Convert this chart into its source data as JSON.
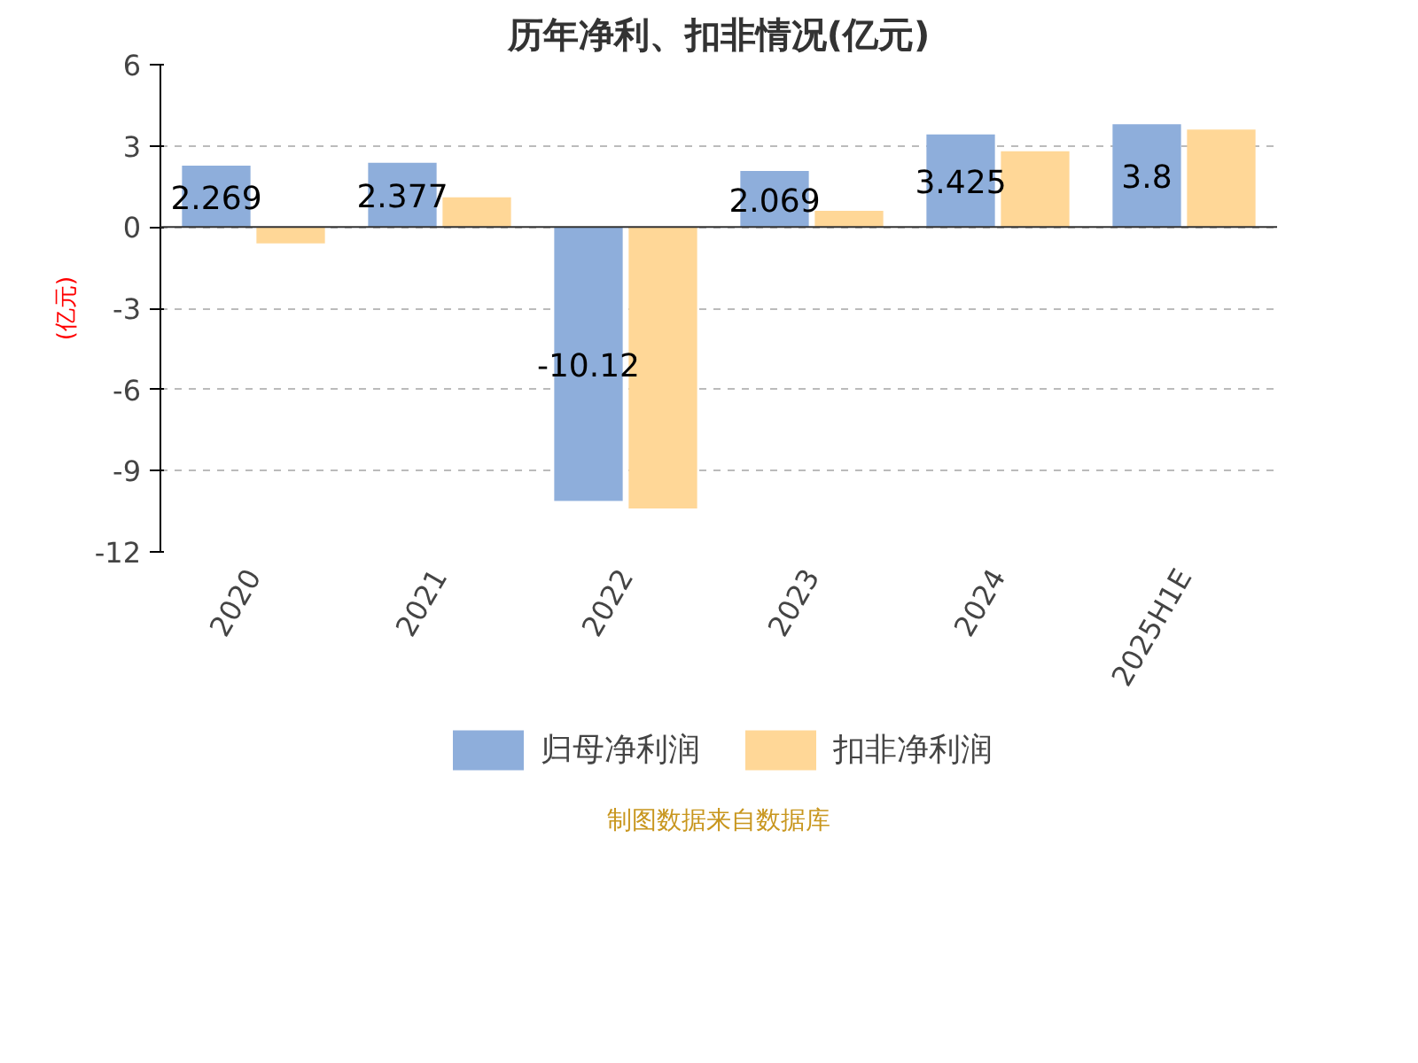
{
  "chart_data": {
    "type": "bar",
    "title": "历年净利、扣非情况(亿元)",
    "ylabel": "(亿元)",
    "categories": [
      "2020",
      "2021",
      "2022",
      "2023",
      "2024",
      "2025H1E"
    ],
    "series": [
      {
        "name": "归母净利润",
        "color": "#8eaedb",
        "values": [
          2.269,
          2.377,
          -10.12,
          2.069,
          3.425,
          3.8
        ],
        "value_labels": [
          "2.269",
          "2.377",
          "-10.12",
          "2.069",
          "3.425",
          "3.8"
        ]
      },
      {
        "name": "扣非净利润",
        "color": "#ffd797",
        "values": [
          -0.6,
          1.1,
          -10.4,
          0.6,
          2.8,
          3.6
        ]
      }
    ],
    "ylim": [
      -12,
      6
    ],
    "yticks": [
      -12,
      -9,
      -6,
      -3,
      0,
      3,
      6
    ],
    "grid": "y",
    "legend": "bottom",
    "annotations": [
      "制图数据来自数据库"
    ]
  }
}
